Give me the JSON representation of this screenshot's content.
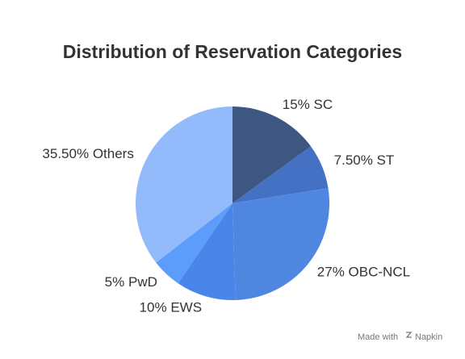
{
  "chart_data": {
    "type": "pie",
    "title": "Distribution of Reservation Categories",
    "categories": [
      "SC",
      "ST",
      "OBC-NCL",
      "EWS",
      "PwD",
      "Others"
    ],
    "values": [
      15,
      7.5,
      27,
      10,
      5,
      35.5
    ],
    "value_labels": [
      "15%",
      "7.50%",
      "27%",
      "10%",
      "5%",
      "35.50%"
    ],
    "colors": [
      "#3e5782",
      "#4471c4",
      "#4f86df",
      "#4a86ea",
      "#5c9dfc",
      "#93bbfb"
    ]
  },
  "footer": {
    "prefix": "Made with",
    "brand": "Napkin"
  }
}
